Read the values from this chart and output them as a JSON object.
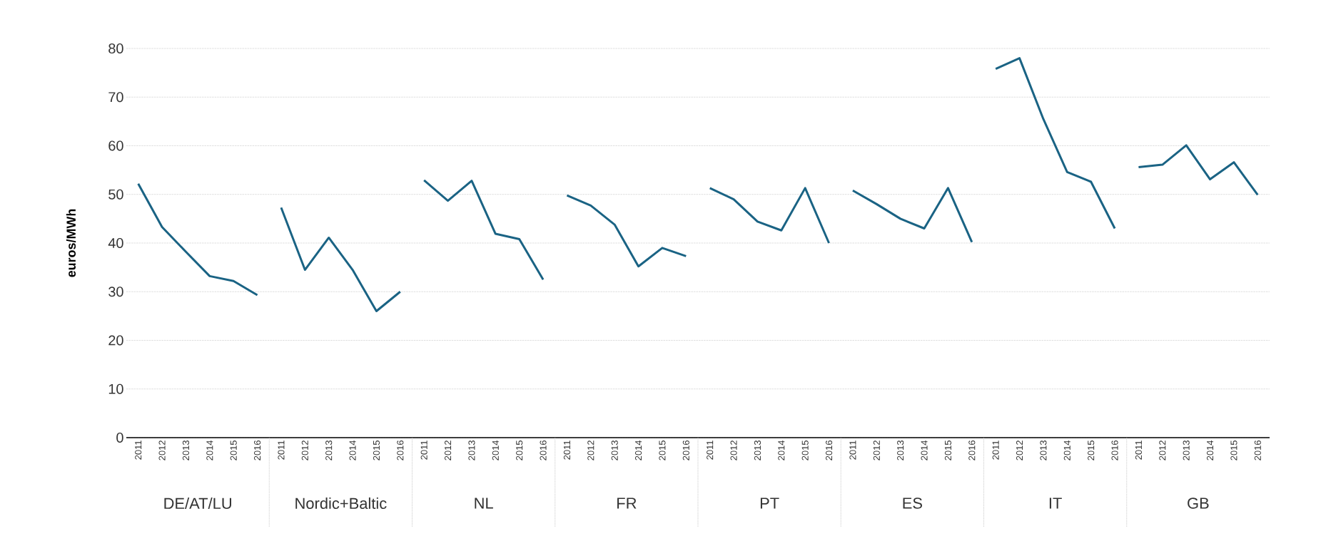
{
  "chart_data": {
    "type": "line",
    "ylabel": "euros/MWh",
    "annotations": [
      "DE/AT/LU",
      "Nordic+Baltic",
      "NL",
      "FR",
      "PT",
      "ES",
      "IT",
      "GB"
    ],
    "categories": [
      "2011",
      "2012",
      "2013",
      "2014",
      "2015",
      "2016",
      "2011",
      "2012",
      "2013",
      "2014",
      "2015",
      "2016",
      "2011",
      "2012",
      "2013",
      "2014",
      "2015",
      "2016",
      "2011",
      "2012",
      "2013",
      "2014",
      "2015",
      "2016",
      "2011",
      "2012",
      "2013",
      "2014",
      "2015",
      "2016",
      "2011",
      "2012",
      "2013",
      "2014",
      "2015",
      "2016",
      "2011",
      "2012",
      "2013",
      "2014",
      "2015",
      "2016",
      "2011",
      "2012",
      "2013",
      "2014",
      "2015",
      "2016"
    ],
    "series": [
      {
        "color": "#1a6384",
        "values": [
          52.2,
          43.3,
          38.2,
          33.2,
          32.2,
          29.3,
          null,
          null,
          null,
          null,
          null,
          null,
          null,
          null,
          null,
          null,
          null,
          null,
          null,
          null,
          null,
          null,
          null,
          null,
          null,
          null,
          null,
          null,
          null,
          null,
          null,
          null,
          null,
          null,
          null,
          null,
          null,
          null,
          null,
          null,
          null,
          null,
          null,
          null,
          null,
          null,
          null,
          null
        ]
      },
      {
        "color": "#1a6384",
        "values": [
          null,
          null,
          null,
          null,
          null,
          null,
          47.3,
          34.5,
          41.1,
          34.5,
          26.0,
          30.0,
          null,
          null,
          null,
          null,
          null,
          null,
          null,
          null,
          null,
          null,
          null,
          null,
          null,
          null,
          null,
          null,
          null,
          null,
          null,
          null,
          null,
          null,
          null,
          null,
          null,
          null,
          null,
          null,
          null,
          null,
          null,
          null,
          null,
          null,
          null,
          null
        ]
      },
      {
        "color": "#1a6384",
        "values": [
          null,
          null,
          null,
          null,
          null,
          null,
          null,
          null,
          null,
          null,
          null,
          null,
          52.9,
          48.7,
          52.8,
          41.9,
          40.8,
          32.5,
          null,
          null,
          null,
          null,
          null,
          null,
          null,
          null,
          null,
          null,
          null,
          null,
          null,
          null,
          null,
          null,
          null,
          null,
          null,
          null,
          null,
          null,
          null,
          null,
          null,
          null,
          null,
          null,
          null,
          null
        ]
      },
      {
        "color": "#1a6384",
        "values": [
          null,
          null,
          null,
          null,
          null,
          null,
          null,
          null,
          null,
          null,
          null,
          null,
          null,
          null,
          null,
          null,
          null,
          null,
          49.8,
          47.7,
          43.8,
          35.2,
          39.0,
          37.3,
          null,
          null,
          null,
          null,
          null,
          null,
          null,
          null,
          null,
          null,
          null,
          null,
          null,
          null,
          null,
          null,
          null,
          null,
          null,
          null,
          null,
          null,
          null,
          null
        ]
      },
      {
        "color": "#1a6384",
        "values": [
          null,
          null,
          null,
          null,
          null,
          null,
          null,
          null,
          null,
          null,
          null,
          null,
          null,
          null,
          null,
          null,
          null,
          null,
          null,
          null,
          null,
          null,
          null,
          null,
          51.3,
          49.0,
          44.4,
          42.6,
          51.3,
          40.0,
          null,
          null,
          null,
          null,
          null,
          null,
          null,
          null,
          null,
          null,
          null,
          null,
          null,
          null,
          null,
          null,
          null,
          null
        ]
      },
      {
        "color": "#1a6384",
        "values": [
          null,
          null,
          null,
          null,
          null,
          null,
          null,
          null,
          null,
          null,
          null,
          null,
          null,
          null,
          null,
          null,
          null,
          null,
          null,
          null,
          null,
          null,
          null,
          null,
          null,
          null,
          null,
          null,
          null,
          null,
          50.8,
          48.0,
          45.0,
          43.0,
          51.3,
          40.2,
          null,
          null,
          null,
          null,
          null,
          null,
          null,
          null,
          null,
          null,
          null,
          null
        ]
      },
      {
        "color": "#1a6384",
        "values": [
          null,
          null,
          null,
          null,
          null,
          null,
          null,
          null,
          null,
          null,
          null,
          null,
          null,
          null,
          null,
          null,
          null,
          null,
          null,
          null,
          null,
          null,
          null,
          null,
          null,
          null,
          null,
          null,
          null,
          null,
          null,
          null,
          null,
          null,
          null,
          null,
          75.8,
          78.0,
          65.5,
          54.6,
          52.6,
          43.0,
          null,
          null,
          null,
          null,
          null,
          null
        ]
      },
      {
        "color": "#1a6384",
        "values": [
          null,
          null,
          null,
          null,
          null,
          null,
          null,
          null,
          null,
          null,
          null,
          null,
          null,
          null,
          null,
          null,
          null,
          null,
          null,
          null,
          null,
          null,
          null,
          null,
          null,
          null,
          null,
          null,
          null,
          null,
          null,
          null,
          null,
          null,
          null,
          null,
          null,
          null,
          null,
          null,
          null,
          null,
          55.6,
          56.1,
          60.1,
          53.1,
          56.6,
          49.9
        ]
      }
    ],
    "ylim": [
      0,
      80
    ],
    "yticks": [
      0,
      10,
      20,
      30,
      40,
      50,
      60,
      70,
      80
    ],
    "grid": "y",
    "line_style": "solid"
  }
}
